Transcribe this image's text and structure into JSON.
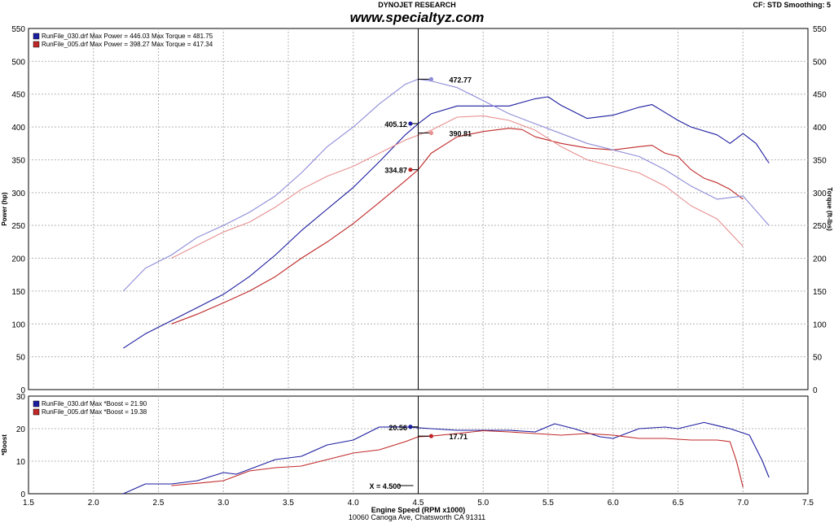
{
  "header": {
    "title": "DYNOJET RESEARCH",
    "site": "www.specialtyz.com",
    "settings": "CF: STD  Smoothing: 5"
  },
  "footer": {
    "address": "10060 Canoga Ave, Chatsworth CA 91311"
  },
  "colors": {
    "run030": "#1c1ca0",
    "run030_light": "#8c8cd8",
    "run005": "#c02828",
    "run005_light": "#e89090",
    "grid": "#b4b4b4",
    "cursor": "#000000"
  },
  "chart_data": [
    {
      "type": "line",
      "id": "power-torque",
      "xlabel": "Engine Speed (RPM x1000)",
      "ylabel": "Power (hp)",
      "ylabel_right": "Torque (ft-lbs)",
      "xlim": [
        1.5,
        7.5
      ],
      "ylim": [
        0,
        550
      ],
      "xticks": [
        "1.5",
        "2.0",
        "2.5",
        "3.0",
        "3.5",
        "4.0",
        "4.5",
        "5.0",
        "5.5",
        "6.0",
        "6.5",
        "7.0",
        "7.5"
      ],
      "yticks": [
        "0",
        "50",
        "100",
        "150",
        "200",
        "250",
        "300",
        "350",
        "400",
        "450",
        "500",
        "550"
      ],
      "grid": true,
      "legend_position": "top-left",
      "legend": [
        "RunFile_030.drf Max Power = 446.03     Max Torque = 481.75",
        "RunFile_005.drf Max Power = 398.27     Max Torque = 417.34"
      ],
      "cursor_x": 4.5,
      "series": [
        {
          "kind": "power",
          "run": "030",
          "color": "#1c1ca0",
          "x": [
            2.23,
            2.4,
            2.6,
            2.8,
            3.0,
            3.2,
            3.4,
            3.6,
            3.8,
            4.0,
            4.2,
            4.4,
            4.5,
            4.6,
            4.8,
            5.0,
            5.2,
            5.4,
            5.5,
            5.6,
            5.8,
            6.0,
            6.2,
            6.3,
            6.4,
            6.5,
            6.6,
            6.8,
            6.9,
            7.0,
            7.1,
            7.2
          ],
          "y": [
            63,
            85,
            105,
            125,
            145,
            172,
            205,
            242,
            275,
            308,
            347,
            388,
            405,
            420,
            432,
            432,
            432,
            443,
            446,
            433,
            413,
            418,
            430,
            434,
            422,
            410,
            400,
            388,
            375,
            390,
            375,
            345
          ]
        },
        {
          "kind": "power",
          "run": "005",
          "color": "#c02828",
          "x": [
            2.6,
            2.8,
            3.0,
            3.2,
            3.4,
            3.6,
            3.8,
            4.0,
            4.2,
            4.4,
            4.5,
            4.6,
            4.8,
            5.0,
            5.2,
            5.3,
            5.4,
            5.6,
            5.8,
            6.0,
            6.2,
            6.3,
            6.4,
            6.5,
            6.6,
            6.7,
            6.8,
            6.9,
            7.0
          ],
          "y": [
            100,
            115,
            132,
            150,
            172,
            200,
            225,
            253,
            285,
            318,
            335,
            360,
            385,
            393,
            398,
            396,
            385,
            375,
            368,
            365,
            370,
            372,
            360,
            355,
            335,
            322,
            315,
            305,
            290
          ]
        },
        {
          "kind": "torque",
          "run": "030",
          "color": "#8c8cd8",
          "x": [
            2.23,
            2.4,
            2.6,
            2.8,
            3.0,
            3.2,
            3.4,
            3.6,
            3.8,
            4.0,
            4.2,
            4.4,
            4.5,
            4.6,
            4.8,
            5.0,
            5.2,
            5.4,
            5.6,
            5.8,
            6.0,
            6.2,
            6.4,
            6.6,
            6.8,
            7.0,
            7.2
          ],
          "y": [
            150,
            185,
            205,
            232,
            250,
            270,
            295,
            330,
            370,
            400,
            435,
            465,
            472.77,
            470,
            460,
            440,
            420,
            405,
            390,
            375,
            365,
            355,
            335,
            310,
            290,
            295,
            250
          ]
        },
        {
          "kind": "torque",
          "run": "005",
          "color": "#e89090",
          "x": [
            2.6,
            2.8,
            3.0,
            3.2,
            3.4,
            3.6,
            3.8,
            4.0,
            4.2,
            4.4,
            4.6,
            4.8,
            5.0,
            5.2,
            5.4,
            5.6,
            5.8,
            6.0,
            6.2,
            6.4,
            6.6,
            6.8,
            7.0
          ],
          "y": [
            200,
            220,
            240,
            255,
            278,
            305,
            325,
            340,
            360,
            380,
            395,
            415,
            417,
            410,
            395,
            370,
            350,
            340,
            330,
            310,
            280,
            260,
            218
          ]
        }
      ],
      "markers": [
        {
          "run": "030",
          "kind": "power",
          "x": 4.44,
          "y": 405.12,
          "label": "405.12",
          "color": "#1c1ca0",
          "label_side": "left"
        },
        {
          "run": "030",
          "kind": "torque",
          "x": 4.6,
          "y": 472.77,
          "label": "472.77",
          "color": "#8c8cd8",
          "label_side": "right"
        },
        {
          "run": "005",
          "kind": "torque",
          "x": 4.6,
          "y": 390.81,
          "label": "390.81",
          "color": "#e89090",
          "label_side": "right"
        },
        {
          "run": "005",
          "kind": "power",
          "x": 4.44,
          "y": 334.87,
          "label": "334.87",
          "color": "#c02828",
          "label_side": "left"
        }
      ]
    },
    {
      "type": "line",
      "id": "boost",
      "xlabel": "Engine Speed (RPM x1000)",
      "ylabel": "*Boost",
      "xlim": [
        1.5,
        7.5
      ],
      "ylim": [
        0,
        30
      ],
      "xticks": [
        "1.5",
        "2.0",
        "2.5",
        "3.0",
        "3.5",
        "4.0",
        "4.5",
        "5.0",
        "5.5",
        "6.0",
        "6.5",
        "7.0",
        "7.5"
      ],
      "yticks": [
        "0",
        "10",
        "20",
        "30"
      ],
      "grid": true,
      "legend_position": "top-left",
      "legend": [
        "RunFile_030.drf Max *Boost = 21.90",
        "RunFile_005.drf Max *Boost = 19.38"
      ],
      "cursor_x": 4.5,
      "cursor_label": "X = 4.500",
      "series": [
        {
          "run": "030",
          "color": "#1c1ca0",
          "x": [
            2.23,
            2.4,
            2.6,
            2.8,
            3.0,
            3.1,
            3.2,
            3.4,
            3.6,
            3.8,
            4.0,
            4.2,
            4.4,
            4.6,
            4.8,
            5.0,
            5.2,
            5.4,
            5.55,
            5.7,
            5.9,
            6.0,
            6.2,
            6.4,
            6.5,
            6.7,
            6.9,
            7.05,
            7.15,
            7.2
          ],
          "y": [
            0,
            3,
            3,
            4,
            6.5,
            6,
            7.5,
            10.5,
            11.5,
            15,
            16.5,
            20.5,
            20.56,
            20,
            19.5,
            19.5,
            19.5,
            19,
            21.5,
            20,
            17.5,
            17,
            20,
            20.5,
            20,
            21.9,
            20,
            18,
            10,
            5
          ]
        },
        {
          "run": "005",
          "color": "#c02828",
          "x": [
            2.6,
            2.8,
            3.0,
            3.2,
            3.4,
            3.6,
            3.8,
            4.0,
            4.2,
            4.4,
            4.5,
            4.6,
            4.8,
            5.0,
            5.2,
            5.4,
            5.6,
            5.8,
            6.0,
            6.2,
            6.4,
            6.6,
            6.8,
            6.9,
            6.95,
            7.0
          ],
          "y": [
            2.5,
            3.2,
            4,
            7,
            8,
            8.5,
            10.5,
            12.5,
            13.5,
            16,
            17.5,
            17.71,
            18.5,
            19.38,
            19,
            18.5,
            18,
            18.5,
            18,
            17,
            17,
            16.5,
            16.5,
            16,
            10,
            2
          ]
        }
      ],
      "markers": [
        {
          "run": "030",
          "x": 4.44,
          "y": 20.56,
          "label": "20.56",
          "color": "#1c1ca0",
          "label_side": "left"
        },
        {
          "run": "005",
          "x": 4.6,
          "y": 17.71,
          "label": "17.71",
          "color": "#c02828",
          "label_side": "right"
        }
      ]
    }
  ]
}
